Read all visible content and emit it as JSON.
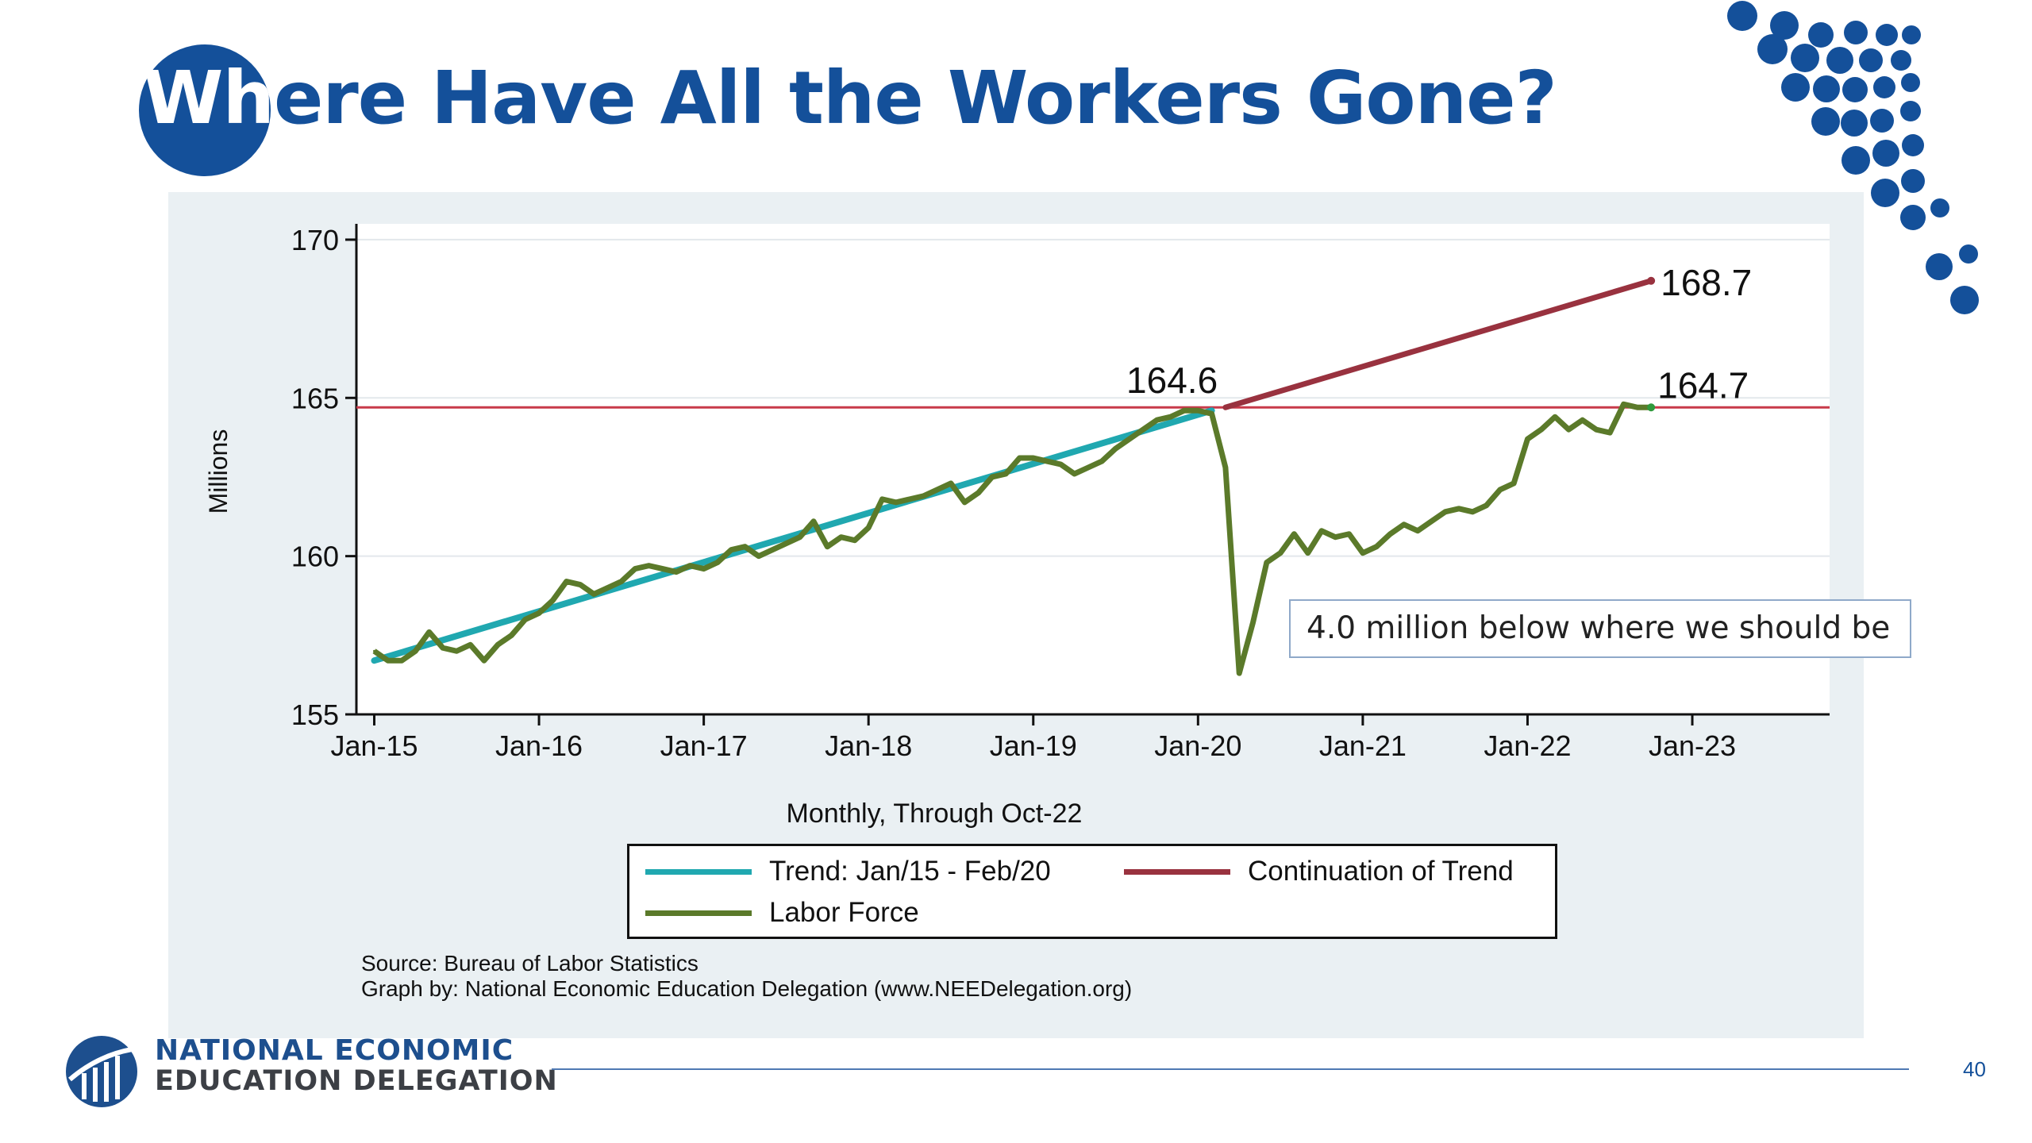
{
  "slide": {
    "title_part1": "Wh",
    "title_part2": "ere Have All the Workers Gone?",
    "callout": "4.0 million below where we should be",
    "source_line1": "Source: Bureau of Labor Statistics",
    "source_line2": "Graph by: National Economic Education Delegation (www.NEEDelegation.org)",
    "org_line1": "NATIONAL ECONOMIC",
    "org_line2": "EDUCATION DELEGATION",
    "page_number": "40"
  },
  "colors": {
    "brand": "#14509a",
    "trend": "#20a8b0",
    "continuation": "#99323f",
    "labor_force": "#5b7a2a",
    "reference_line": "#c83a4a"
  },
  "chart_data": {
    "type": "line",
    "title": "",
    "xlabel": "Monthly, Through Oct-22",
    "ylabel": "Millions",
    "ylim": [
      155,
      170.5
    ],
    "yticks": [
      155,
      160,
      165,
      170
    ],
    "xticks": [
      {
        "label": "Jan-15",
        "x": 0
      },
      {
        "label": "Jan-16",
        "x": 12
      },
      {
        "label": "Jan-17",
        "x": 24
      },
      {
        "label": "Jan-18",
        "x": 36
      },
      {
        "label": "Jan-19",
        "x": 48
      },
      {
        "label": "Jan-20",
        "x": 60
      },
      {
        "label": "Jan-21",
        "x": 72
      },
      {
        "label": "Jan-22",
        "x": 84
      },
      {
        "label": "Jan-23",
        "x": 96
      }
    ],
    "x_unit": "months since Jan-15",
    "xlim": [
      -1.3,
      106
    ],
    "legend_position": "bottom",
    "grid": true,
    "reference_line": {
      "y": 164.7
    },
    "annotations": [
      {
        "text": "164.6",
        "x": 61,
        "y": 164.6
      },
      {
        "text": "168.7",
        "x": 93,
        "y": 168.7
      },
      {
        "text": "164.7",
        "x": 93,
        "y": 164.7
      }
    ],
    "series": [
      {
        "name": "Trend: Jan/15 - Feb/20",
        "key": "trend",
        "x": [
          0,
          61
        ],
        "values": [
          156.7,
          164.6
        ]
      },
      {
        "name": "Continuation of Trend",
        "key": "continuation",
        "x": [
          62,
          93
        ],
        "values": [
          164.7,
          168.7
        ]
      },
      {
        "name": "Labor Force",
        "key": "labor",
        "values": [
          157.0,
          156.7,
          156.7,
          157.0,
          157.6,
          157.1,
          157.0,
          157.2,
          156.7,
          157.2,
          157.5,
          158.0,
          158.2,
          158.6,
          159.2,
          159.1,
          158.8,
          159.0,
          159.2,
          159.6,
          159.7,
          159.6,
          159.5,
          159.7,
          159.6,
          159.8,
          160.2,
          160.3,
          160.0,
          160.2,
          160.4,
          160.6,
          161.1,
          160.3,
          160.6,
          160.5,
          160.9,
          161.8,
          161.7,
          161.8,
          161.9,
          162.1,
          162.3,
          161.7,
          162.0,
          162.5,
          162.6,
          163.1,
          163.1,
          163.0,
          162.9,
          162.6,
          162.8,
          163.0,
          163.4,
          163.7,
          164.0,
          164.3,
          164.4,
          164.6,
          164.6,
          164.5,
          162.8,
          156.3,
          157.9,
          159.8,
          160.1,
          160.7,
          160.1,
          160.8,
          160.6,
          160.7,
          160.1,
          160.3,
          160.7,
          161.0,
          160.8,
          161.1,
          161.4,
          161.5,
          161.4,
          161.6,
          162.1,
          162.3,
          163.7,
          164.0,
          164.4,
          164.0,
          164.3,
          164.0,
          163.9,
          164.8,
          164.7,
          164.7
        ]
      }
    ]
  }
}
